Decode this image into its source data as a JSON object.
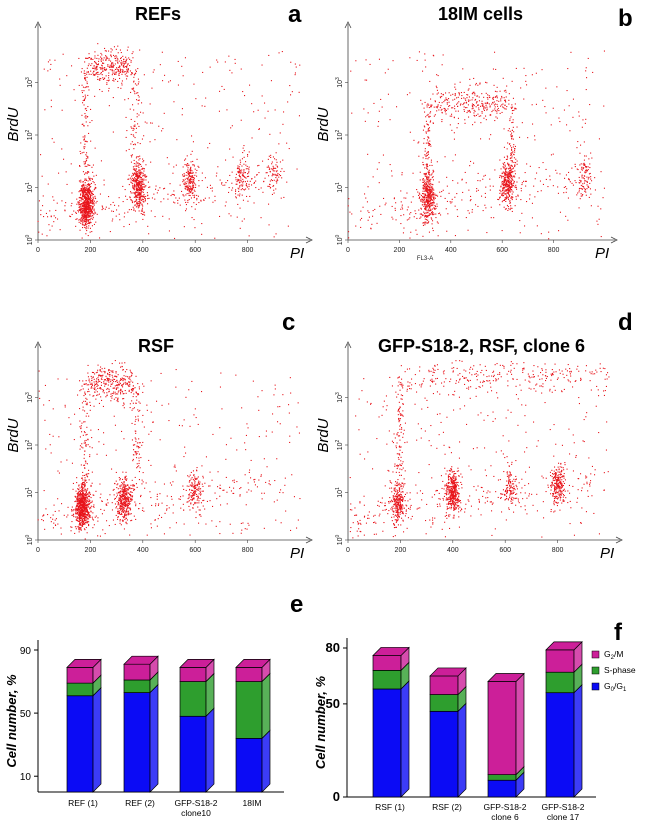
{
  "chart_data": [
    {
      "type": "scatter",
      "panel": "a",
      "title": "REFs",
      "xlabel": "PI",
      "ylabel": "BrdU",
      "xlim": [
        0,
        1000
      ],
      "y_scale": "log",
      "ylim": [
        1,
        10000
      ],
      "x_ticks": [
        "0",
        "200",
        "400",
        "600",
        "800"
      ],
      "y_ticks": [
        "10^0",
        "10^1",
        "10^2",
        "10^3"
      ],
      "color": "#e8141b",
      "clusters": [
        {
          "x": 185,
          "y": 5,
          "weight": 3.0
        },
        {
          "x": 385,
          "y": 10,
          "weight": 1.6
        },
        {
          "x": 580,
          "y": 13,
          "weight": 0.8
        },
        {
          "x": 780,
          "y": 15,
          "weight": 0.5
        },
        {
          "x": 900,
          "y": 18,
          "weight": 0.3
        }
      ],
      "s_phase_band": {
        "x": [
          200,
          350
        ],
        "y": 2000
      }
    },
    {
      "type": "scatter",
      "panel": "b",
      "title": "18IM cells",
      "xlabel": "PI",
      "xlabel_small": "FL3-A",
      "ylabel": "BrdU",
      "xlim": [
        0,
        1000
      ],
      "y_scale": "log",
      "ylim": [
        1,
        10000
      ],
      "x_ticks": [
        "0",
        "200",
        "400",
        "600",
        "800"
      ],
      "y_ticks": [
        "10^0",
        "10^1",
        "10^2",
        "10^3"
      ],
      "color": "#e8141b",
      "clusters": [
        {
          "x": 310,
          "y": 6,
          "weight": 1.6
        },
        {
          "x": 620,
          "y": 12,
          "weight": 1.4
        },
        {
          "x": 920,
          "y": 15,
          "weight": 0.4
        }
      ],
      "s_phase_band": {
        "x": [
          330,
          620
        ],
        "y": 400
      }
    },
    {
      "type": "scatter",
      "panel": "c",
      "title": "RSF",
      "xlabel": "PI",
      "ylabel": "BrdU",
      "xlim": [
        0,
        1000
      ],
      "y_scale": "log",
      "ylim": [
        1,
        10000
      ],
      "x_ticks": [
        "0",
        "200",
        "400",
        "600",
        "800"
      ],
      "y_ticks": [
        "10^0",
        "10^1",
        "10^2",
        "10^3"
      ],
      "color": "#e8141b",
      "clusters": [
        {
          "x": 170,
          "y": 5,
          "weight": 3.0
        },
        {
          "x": 330,
          "y": 7,
          "weight": 1.6
        },
        {
          "x": 600,
          "y": 10,
          "weight": 0.6
        }
      ],
      "s_phase_band": {
        "x": [
          200,
          360
        ],
        "y": 2000
      }
    },
    {
      "type": "scatter",
      "panel": "d",
      "title": "GFP-S18-2, RSF, clone 6",
      "xlabel": "PI",
      "ylabel": "BrdU",
      "xlim": [
        0,
        1000
      ],
      "y_scale": "log",
      "ylim": [
        1,
        10000
      ],
      "x_ticks": [
        "0",
        "200",
        "400",
        "600",
        "800"
      ],
      "y_ticks": [
        "10^0",
        "10^1",
        "10^2",
        "10^3"
      ],
      "color": "#e8141b",
      "clusters": [
        {
          "x": 190,
          "y": 6,
          "weight": 1.0
        },
        {
          "x": 400,
          "y": 10,
          "weight": 1.8
        },
        {
          "x": 800,
          "y": 15,
          "weight": 1.0
        },
        {
          "x": 620,
          "y": 12,
          "weight": 0.5
        }
      ],
      "s_phase_band": {
        "x": [
          220,
          1000
        ],
        "y": 3000
      }
    },
    {
      "type": "bar",
      "panel": "e",
      "stacked": true,
      "ylabel": "Cell number, %",
      "y_ticks": [
        10,
        50,
        90
      ],
      "ylim": [
        0,
        90
      ],
      "categories": [
        "REF (1)",
        "REF (2)",
        "GFP-S18-2\nclone10",
        "18IM"
      ],
      "series": [
        {
          "name": "G0/G1",
          "color": "#0b0bf5",
          "values": [
            61,
            63,
            48,
            34
          ]
        },
        {
          "name": "S-phase",
          "color": "#2e9e2e",
          "values": [
            8,
            8,
            22,
            36
          ]
        },
        {
          "name": "G2/M",
          "color": "#cc1f99",
          "values": [
            10,
            10,
            9,
            9
          ]
        }
      ]
    },
    {
      "type": "bar",
      "panel": "f",
      "stacked": true,
      "ylabel": "Cell number, %",
      "y_ticks": [
        0,
        50,
        80
      ],
      "ylim": [
        0,
        80
      ],
      "categories": [
        "RSF (1)",
        "RSF (2)",
        "GFP-S18-2\nclone 6",
        "GFP-S18-2\nclone 17"
      ],
      "series": [
        {
          "name": "G0/G1",
          "color": "#0b0bf5",
          "values": [
            58,
            46,
            9,
            56
          ]
        },
        {
          "name": "S-phase",
          "color": "#2e9e2e",
          "values": [
            10,
            9,
            3,
            11
          ]
        },
        {
          "name": "G2/M",
          "color": "#cc1f99",
          "values": [
            8,
            10,
            50,
            12
          ]
        }
      ],
      "legend": {
        "placement": "right",
        "entries": [
          {
            "label": "G2/M",
            "main": "G",
            "sub": "2",
            "rest": "/M",
            "color": "#cc1f99"
          },
          {
            "label": "S-phase",
            "main": "S-phase",
            "sub": "",
            "rest": "",
            "color": "#2e9e2e"
          },
          {
            "label": "G0/G1",
            "main": "G",
            "sub": "0",
            "rest": "/G",
            "sub2": "1",
            "color": "#0b0bf5"
          }
        ]
      }
    }
  ]
}
